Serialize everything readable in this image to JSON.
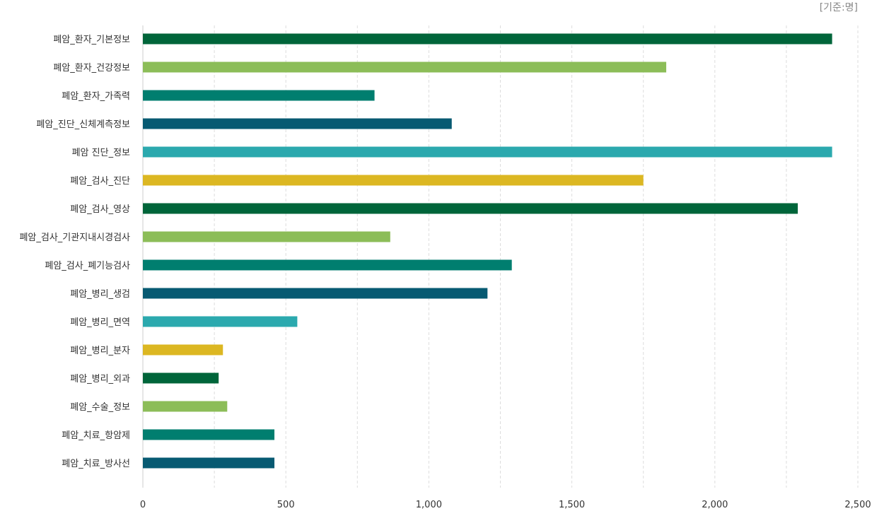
{
  "unit_label": "[기준:명]",
  "chart_data": {
    "type": "bar",
    "orientation": "horizontal",
    "title": "",
    "xlabel": "",
    "ylabel": "",
    "xlim": [
      0,
      2500
    ],
    "grid": true,
    "x_ticks": [
      0,
      500,
      1000,
      1500,
      2000,
      2500
    ],
    "x_tick_labels": [
      "0",
      "500",
      "1,000",
      "1,500",
      "2,000",
      "2,500"
    ],
    "categories": [
      "폐암_환자_기본정보",
      "폐암_환자_건강정보",
      "폐암_환자_가족력",
      "폐암_진단_신체계측정보",
      "폐암 진단_정보",
      "폐암_검사_진단",
      "폐암_검사_영상",
      "폐암_검사_기관지내시경검사",
      "폐암_검사_폐기능검사",
      "폐암_병리_생검",
      "폐암_병리_면역",
      "폐암_병리_분자",
      "폐암_병리_외과",
      "폐암_수술_정보",
      "폐암_치료_항암제",
      "폐암_치료_방사선"
    ],
    "values": [
      2410,
      1830,
      810,
      1080,
      2410,
      1750,
      2290,
      865,
      1290,
      1205,
      540,
      280,
      265,
      295,
      460,
      460
    ],
    "colors": [
      "#00653a",
      "#8cbd58",
      "#007e6f",
      "#075a72",
      "#2ba9ae",
      "#dcb722",
      "#00653a",
      "#8cbd58",
      "#007e6f",
      "#075a72",
      "#2ba9ae",
      "#dcb722",
      "#00653a",
      "#8cbd58",
      "#007e6f",
      "#075a72"
    ]
  }
}
